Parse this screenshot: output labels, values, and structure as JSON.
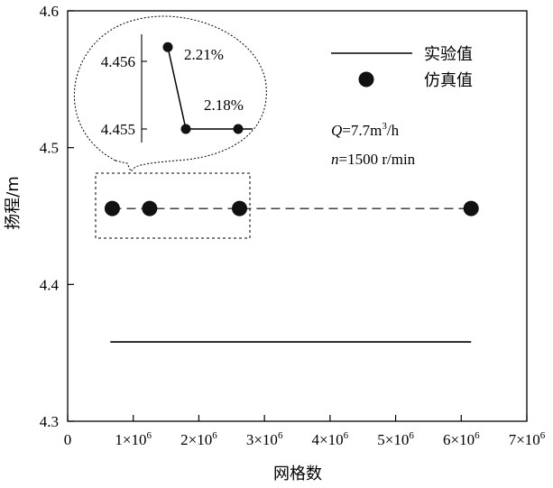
{
  "chart_data": {
    "type": "line",
    "xlabel": "网格数",
    "ylabel": "扬程/m",
    "xlim": [
      0,
      7000000
    ],
    "ylim": [
      4.3,
      4.6
    ],
    "x_ticks": [
      {
        "value": 0,
        "label": "0"
      },
      {
        "value": 1000000,
        "label": "1×10",
        "sup": "6"
      },
      {
        "value": 2000000,
        "label": "2×10",
        "sup": "6"
      },
      {
        "value": 3000000,
        "label": "3×10",
        "sup": "6"
      },
      {
        "value": 4000000,
        "label": "4×10",
        "sup": "6"
      },
      {
        "value": 5000000,
        "label": "5×10",
        "sup": "6"
      },
      {
        "value": 6000000,
        "label": "6×10",
        "sup": "6"
      },
      {
        "value": 7000000,
        "label": "7×10",
        "sup": "6"
      }
    ],
    "y_ticks": [
      {
        "value": 4.3,
        "label": "4.3"
      },
      {
        "value": 4.4,
        "label": "4.4"
      },
      {
        "value": 4.5,
        "label": "4.5"
      },
      {
        "value": 4.6,
        "label": "4.6"
      }
    ],
    "series": [
      {
        "name": "实验值",
        "style": "solid-line",
        "x": [
          650000,
          6150000
        ],
        "y": [
          4.358,
          4.358
        ]
      },
      {
        "name": "仿真值",
        "style": "dashed-line-with-filled-circles",
        "x": [
          680000,
          1250000,
          2620000,
          6150000
        ],
        "y": [
          4.4555,
          4.4555,
          4.4555,
          4.4555
        ]
      }
    ],
    "legend": {
      "position": "top-right",
      "entries": [
        {
          "label": "实验值",
          "marker": "line"
        },
        {
          "label": "仿真值",
          "marker": "circle"
        }
      ]
    },
    "annotation": {
      "q_prefix": "Q",
      "q_value": "=7.7m",
      "q_sup": "3",
      "q_suffix": "/h",
      "n_prefix": "n",
      "n_value": "=1500 r/min"
    },
    "zoom_inset": {
      "y_ticks": [
        {
          "value": 4.456,
          "label": "4.456"
        },
        {
          "value": 4.455,
          "label": "4.455"
        }
      ],
      "points": [
        {
          "y": 4.45621,
          "label": "2.21%"
        },
        {
          "y": 4.455,
          "label": ""
        },
        {
          "y": 4.455,
          "label": "2.18%"
        }
      ]
    }
  }
}
